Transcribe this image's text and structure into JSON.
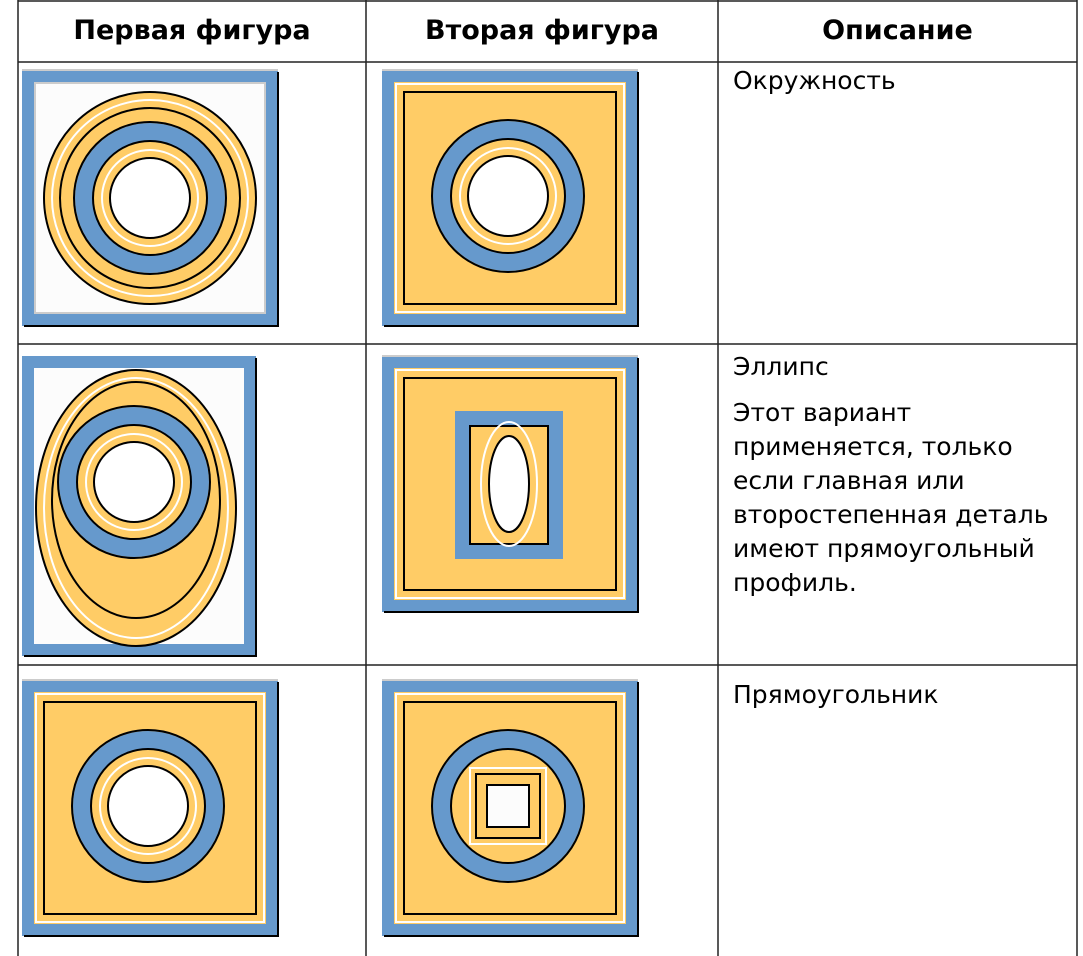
{
  "table": {
    "header": [
      "Первая фигура",
      "Вторая фигура",
      "Описание"
    ],
    "rows": [
      {
        "description": [
          "Окружность"
        ]
      },
      {
        "description": [
          "Эллипс",
          "Этот вариант применяется, только если главная или второстепенная деталь имеют прямоугольный профиль."
        ]
      },
      {
        "description": [
          "Прямоугольник"
        ]
      }
    ]
  }
}
